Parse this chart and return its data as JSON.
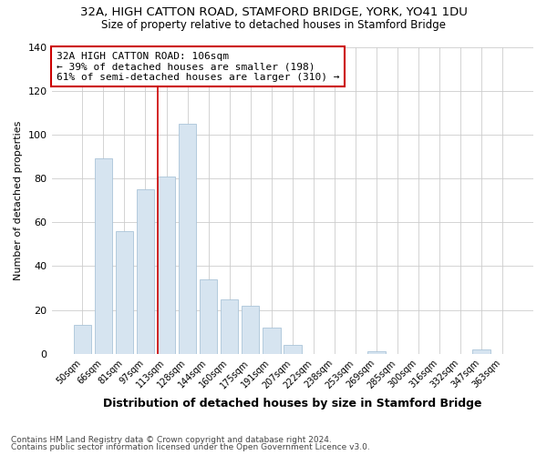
{
  "title1": "32A, HIGH CATTON ROAD, STAMFORD BRIDGE, YORK, YO41 1DU",
  "title2": "Size of property relative to detached houses in Stamford Bridge",
  "xlabel": "Distribution of detached houses by size in Stamford Bridge",
  "ylabel": "Number of detached properties",
  "footer1": "Contains HM Land Registry data © Crown copyright and database right 2024.",
  "footer2": "Contains public sector information licensed under the Open Government Licence v3.0.",
  "categories": [
    "50sqm",
    "66sqm",
    "81sqm",
    "97sqm",
    "113sqm",
    "128sqm",
    "144sqm",
    "160sqm",
    "175sqm",
    "191sqm",
    "207sqm",
    "222sqm",
    "238sqm",
    "253sqm",
    "269sqm",
    "285sqm",
    "300sqm",
    "316sqm",
    "332sqm",
    "347sqm",
    "363sqm"
  ],
  "values": [
    13,
    89,
    56,
    75,
    81,
    105,
    34,
    25,
    22,
    12,
    4,
    0,
    0,
    0,
    1,
    0,
    0,
    0,
    0,
    2,
    0
  ],
  "bar_color": "#d6e4f0",
  "bar_edge_color": "#aac4d8",
  "vline_color": "#cc0000",
  "annotation_text": "32A HIGH CATTON ROAD: 106sqm\n← 39% of detached houses are smaller (198)\n61% of semi-detached houses are larger (310) →",
  "annotation_box_color": "white",
  "annotation_box_edge": "#cc0000",
  "ylim": [
    0,
    140
  ],
  "yticks": [
    0,
    20,
    40,
    60,
    80,
    100,
    120,
    140
  ],
  "grid_color": "#cccccc",
  "bg_color": "#ffffff"
}
